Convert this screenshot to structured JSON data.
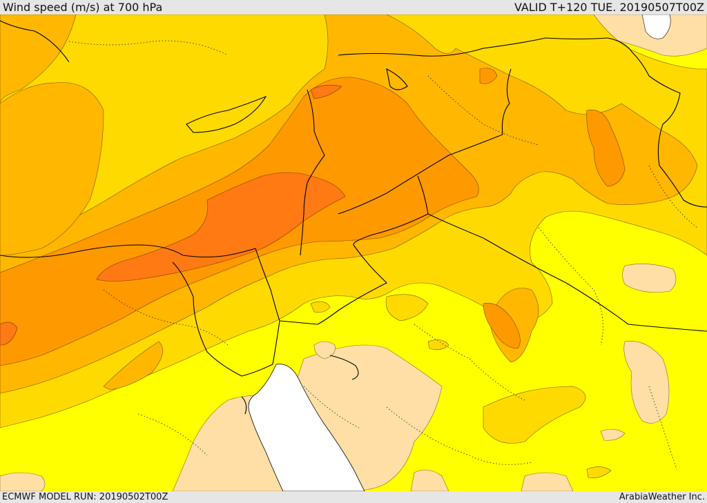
{
  "header": {
    "title": "Wind speed (m/s) at 700 hPa",
    "valid": "VALID T+120 TUE. 20190507T00Z"
  },
  "footer": {
    "model_run": "ECMWF MODEL RUN: 20190502T00Z",
    "credit": "ArabiaWeather Inc."
  },
  "colors": {
    "sea_white": "#ffffff",
    "band_lowest": "#ffdfa6",
    "band_yellow": "#ffff00",
    "band_gold": "#ffda00",
    "band_amber": "#ffb700",
    "band_orange": "#ff9900",
    "band_dark_orange": "#ff7a12",
    "border_line": "#000000",
    "contour_line": "#7a5a00"
  }
}
